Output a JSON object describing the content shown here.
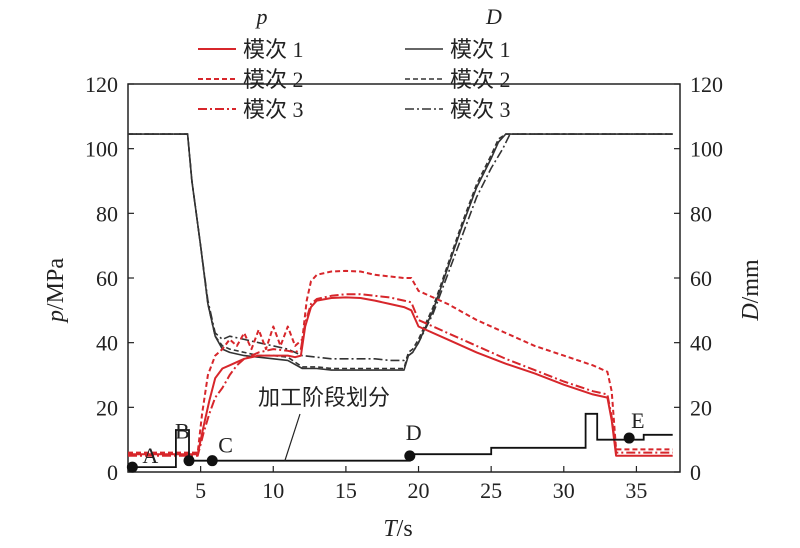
{
  "chart_data": {
    "type": "line",
    "xlabel_var": "T",
    "xlabel_unit": "/s",
    "ylabel_left_var": "p",
    "ylabel_left_unit": "/MPa",
    "ylabel_right_var": "D",
    "ylabel_right_unit": "/mm",
    "xlim": [
      0,
      38
    ],
    "ylim": [
      0,
      120
    ],
    "x_ticks": [
      5,
      10,
      15,
      20,
      25,
      30,
      35
    ],
    "y_ticks": [
      0,
      20,
      40,
      60,
      80,
      100,
      120
    ],
    "legend": {
      "p_header": "p",
      "d_header": "D",
      "p_entries": [
        "模次 1",
        "模次 2",
        "模次 3"
      ],
      "d_entries": [
        "模次 1",
        "模次 2",
        "模次 3"
      ]
    },
    "colors": {
      "p": "#d7262b",
      "D": "#333333"
    },
    "series": [
      {
        "name": "模次 1",
        "group": "p",
        "dash": "solid",
        "x": [
          0,
          4.8,
          5.2,
          5.6,
          6.0,
          6.5,
          7.0,
          7.5,
          8.0,
          9.0,
          10.0,
          11.0,
          11.5,
          11.9,
          12.2,
          12.6,
          13.0,
          14.0,
          15.0,
          16.0,
          17.0,
          18.0,
          19.0,
          19.5,
          20.0,
          22.0,
          24.0,
          26.0,
          28.0,
          30.0,
          32.0,
          33.0,
          33.3,
          33.6,
          37.5
        ],
        "y": [
          5.5,
          5.5,
          14,
          22,
          29,
          32,
          33,
          34,
          35,
          36,
          36,
          36,
          35.5,
          36,
          45,
          51,
          53,
          53.8,
          54,
          53.8,
          53,
          52,
          51,
          50,
          45,
          41,
          37,
          33.5,
          30.5,
          27,
          24,
          23,
          16,
          5,
          5
        ]
      },
      {
        "name": "模次 2",
        "group": "p",
        "dash": "5,3",
        "x": [
          0,
          4.8,
          5.1,
          5.5,
          6.0,
          6.5,
          7.0,
          7.5,
          8.0,
          8.5,
          9.0,
          9.5,
          10.0,
          10.5,
          11.0,
          11.5,
          12.0,
          12.3,
          12.6,
          13.0,
          14.0,
          15.0,
          16.0,
          17.0,
          18.0,
          19.0,
          19.5,
          20.0,
          22.0,
          24.0,
          26.0,
          28.0,
          30.0,
          32.0,
          33.0,
          33.3,
          33.6,
          37.5
        ],
        "y": [
          6,
          6,
          18,
          30,
          36,
          38,
          41,
          39,
          43,
          38,
          44,
          38,
          45,
          39,
          45,
          39,
          41,
          53,
          59,
          61,
          62,
          62.2,
          62,
          61,
          60.5,
          60,
          60,
          56,
          52,
          47,
          43,
          39,
          36,
          33,
          31,
          25,
          7,
          7
        ]
      },
      {
        "name": "模次 3",
        "group": "p",
        "dash": "9,3,2,3",
        "x": [
          0,
          4.8,
          5.2,
          5.6,
          6.0,
          6.5,
          7.0,
          7.5,
          8.0,
          9.0,
          10.0,
          11.0,
          11.5,
          11.9,
          12.2,
          12.6,
          13.0,
          14.0,
          15.0,
          16.0,
          17.0,
          18.0,
          19.0,
          19.5,
          20.0,
          22.0,
          24.0,
          26.0,
          28.0,
          30.0,
          32.0,
          33.0,
          33.3,
          33.6,
          37.5
        ],
        "y": [
          5,
          5,
          12,
          18,
          23,
          26,
          30,
          33,
          35,
          37,
          38,
          37.5,
          37,
          38,
          46,
          52,
          53.5,
          54.5,
          55,
          55,
          54.5,
          54,
          53,
          52.5,
          47,
          43,
          39,
          35,
          31.5,
          28,
          25,
          24,
          17,
          6,
          6
        ]
      },
      {
        "name": "模次 1",
        "group": "D",
        "dash": "solid",
        "x": [
          0,
          4.1,
          4.4,
          5.0,
          5.5,
          6.0,
          6.5,
          7.0,
          8.0,
          9.0,
          10.0,
          11.0,
          12.0,
          13.0,
          14.0,
          15.0,
          16.0,
          17.0,
          18.0,
          19.0,
          19.3,
          19.6,
          20.0,
          21.0,
          22.0,
          23.0,
          24.0,
          25.0,
          25.5,
          26.0,
          37.5
        ],
        "y": [
          104.5,
          104.5,
          90,
          70,
          52,
          42,
          38,
          37,
          36,
          35.5,
          35,
          34.5,
          32,
          32,
          31.5,
          31.5,
          31.5,
          31.5,
          31.5,
          31.5,
          36,
          37,
          40,
          50,
          63,
          76,
          88,
          97,
          102,
          104.5,
          104.5
        ]
      },
      {
        "name": "模次 2",
        "group": "D",
        "dash": "5,3",
        "x": [
          0,
          4.1,
          4.4,
          5.0,
          5.5,
          6.0,
          6.5,
          7.0,
          8.0,
          9.0,
          10.0,
          11.0,
          12.0,
          13.0,
          14.0,
          15.0,
          16.0,
          17.0,
          18.0,
          19.0,
          19.3,
          19.6,
          20.0,
          21.0,
          22.0,
          23.0,
          24.0,
          25.0,
          25.5,
          26.0,
          37.5
        ],
        "y": [
          104.5,
          104.5,
          90,
          70,
          52,
          42,
          39,
          38,
          37,
          36,
          36,
          35.5,
          32.5,
          32.5,
          32,
          32,
          32,
          32,
          32,
          32,
          37,
          38,
          41,
          51,
          64,
          77,
          89,
          98,
          103,
          104.5,
          104.5
        ]
      },
      {
        "name": "模次 3",
        "group": "D",
        "dash": "9,3,2,3",
        "x": [
          0,
          4.1,
          4.4,
          5.0,
          5.5,
          6.0,
          6.5,
          7.0,
          8.0,
          9.0,
          10.0,
          11.0,
          12.0,
          13.0,
          14.0,
          15.0,
          16.0,
          17.0,
          18.0,
          19.0,
          19.3,
          19.6,
          20.0,
          21.0,
          22.0,
          23.0,
          24.0,
          25.0,
          25.8,
          26.3,
          37.5
        ],
        "y": [
          104.5,
          104.5,
          90,
          70,
          53,
          43,
          41,
          42,
          41,
          40,
          39,
          38,
          36,
          35.5,
          35,
          35,
          35,
          35,
          34.5,
          34.5,
          36,
          37,
          40,
          49,
          61,
          73,
          85,
          94,
          100,
          104.5,
          104.5
        ]
      }
    ],
    "stage_line": {
      "x": [
        0,
        3.3,
        3.3,
        4.2,
        4.2,
        6.0,
        6.0,
        19.4,
        19.4,
        25.0,
        25.0,
        31.5,
        31.5,
        32.3,
        32.3,
        35.5,
        35.5,
        37.5
      ],
      "y": [
        1.5,
        1.5,
        13,
        13,
        3.5,
        3.5,
        3.5,
        3.5,
        5.5,
        5.5,
        7.5,
        7.5,
        18,
        18,
        10,
        10,
        11.5,
        11.5
      ]
    },
    "stage_points": [
      {
        "label": "A",
        "x": 0.3,
        "y": 1.5
      },
      {
        "label": "B",
        "x": 4.2,
        "y": 3.5
      },
      {
        "label": "C",
        "x": 5.8,
        "y": 3.5
      },
      {
        "label": "D",
        "x": 19.4,
        "y": 5.0
      },
      {
        "label": "E",
        "x": 34.5,
        "y": 10.5
      }
    ],
    "annotation": {
      "text": "加工阶段划分",
      "target_x": 10.8,
      "target_y": 3.5
    }
  }
}
